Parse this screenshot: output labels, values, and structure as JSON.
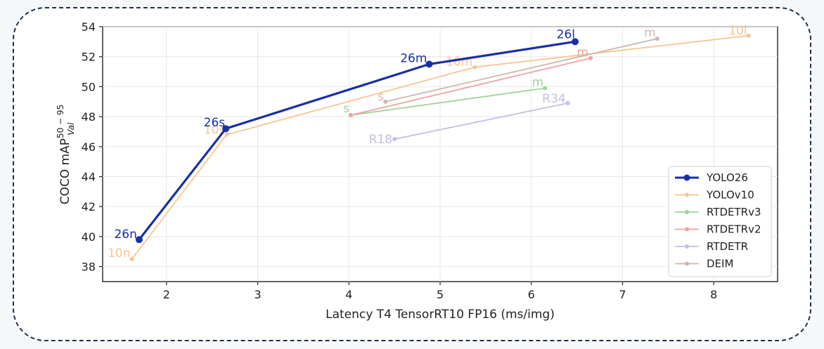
{
  "chart_data": {
    "type": "line",
    "xlabel": "Latency T4 TensorRT10 FP16 (ms/img)",
    "ylabel_main": "COCO mAP",
    "ylabel_sup": "50 − 95",
    "ylabel_sub": "Val",
    "xlim": [
      1.3,
      8.7
    ],
    "ylim": [
      37,
      54
    ],
    "xticks": [
      2,
      3,
      4,
      5,
      6,
      7,
      8
    ],
    "yticks": [
      38,
      40,
      42,
      44,
      46,
      48,
      50,
      52,
      54
    ],
    "grid": true,
    "legend_position": "lower-right",
    "series": [
      {
        "name": "YOLO26",
        "color": "#1730a6",
        "bold": true,
        "points": [
          [
            1.7,
            39.8
          ],
          [
            2.65,
            47.2
          ],
          [
            4.88,
            51.5
          ],
          [
            6.48,
            53.0
          ]
        ],
        "labels": [
          "26n",
          "26s",
          "26m",
          "26l"
        ]
      },
      {
        "name": "YOLOv10",
        "color": "#f8c58f",
        "bold": false,
        "points": [
          [
            1.62,
            38.5
          ],
          [
            2.66,
            46.8
          ],
          [
            5.38,
            51.3
          ],
          [
            8.38,
            53.4
          ]
        ],
        "labels": [
          "10n",
          "10s",
          "10m",
          "10l"
        ]
      },
      {
        "name": "RTDETRv3",
        "color": "#9fd49b",
        "bold": false,
        "points": [
          [
            4.02,
            48.1
          ],
          [
            6.15,
            49.9
          ]
        ],
        "labels": [
          "s",
          "m"
        ]
      },
      {
        "name": "RTDETRv2",
        "color": "#eba3a3",
        "bold": false,
        "points": [
          [
            4.02,
            48.1
          ],
          [
            6.65,
            51.9
          ]
        ],
        "labels": [
          "",
          "m"
        ]
      },
      {
        "name": "RTDETR",
        "color": "#c7bde2",
        "bold": false,
        "points": [
          [
            4.5,
            46.5
          ],
          [
            6.4,
            48.9
          ]
        ],
        "labels": [
          "R18",
          "R34"
        ]
      },
      {
        "name": "DEIM",
        "color": "#cfb5ad",
        "bold": false,
        "points": [
          [
            4.4,
            49.0
          ],
          [
            7.38,
            53.2
          ]
        ],
        "labels": [
          "s",
          "m"
        ]
      }
    ]
  }
}
